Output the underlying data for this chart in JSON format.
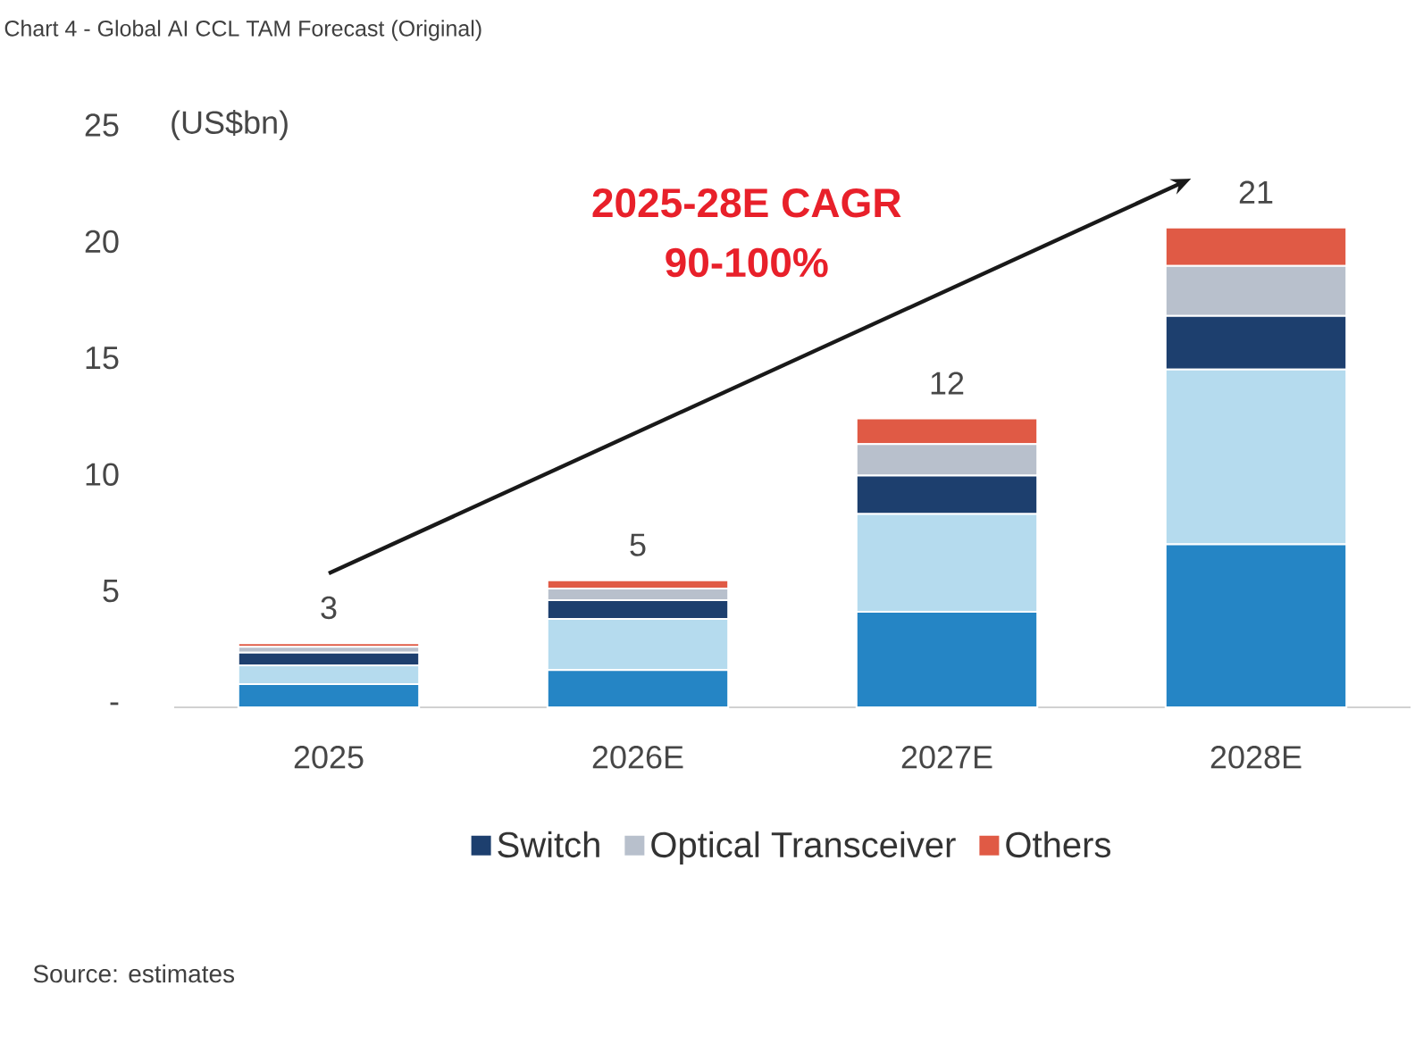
{
  "chart_data": {
    "type": "bar",
    "title": "Chart 4 - Global AI CCL TAM Forecast (Original)",
    "ylabel": "(US$bn)",
    "categories": [
      "2025",
      "2026E",
      "2027E",
      "2028E"
    ],
    "stacked": true,
    "series": [
      {
        "color": "#2585c5",
        "values": [
          1.0,
          1.6,
          4.1,
          7.0
        ]
      },
      {
        "color": "#b5dbee",
        "values": [
          0.8,
          2.2,
          4.2,
          7.5
        ]
      },
      {
        "name": "Switch",
        "color": "#1d3f6e",
        "values": [
          0.55,
          0.8,
          1.65,
          2.3
        ]
      },
      {
        "name": "Optical Transceiver",
        "color": "#b8c0cc",
        "values": [
          0.25,
          0.5,
          1.35,
          2.15
        ]
      },
      {
        "name": "Others",
        "color": "#e05a45",
        "values": [
          0.15,
          0.35,
          1.1,
          1.65
        ]
      }
    ],
    "totals": [
      "3",
      "5",
      "12",
      "21"
    ],
    "ylim": [
      0,
      25
    ],
    "yticks": [
      {
        "value": 0,
        "label": "-"
      },
      5,
      10,
      15,
      20,
      25
    ],
    "legend": "bottom",
    "annotations": [
      "2025-28E CAGR 90-100%",
      "Source: estimates"
    ]
  }
}
